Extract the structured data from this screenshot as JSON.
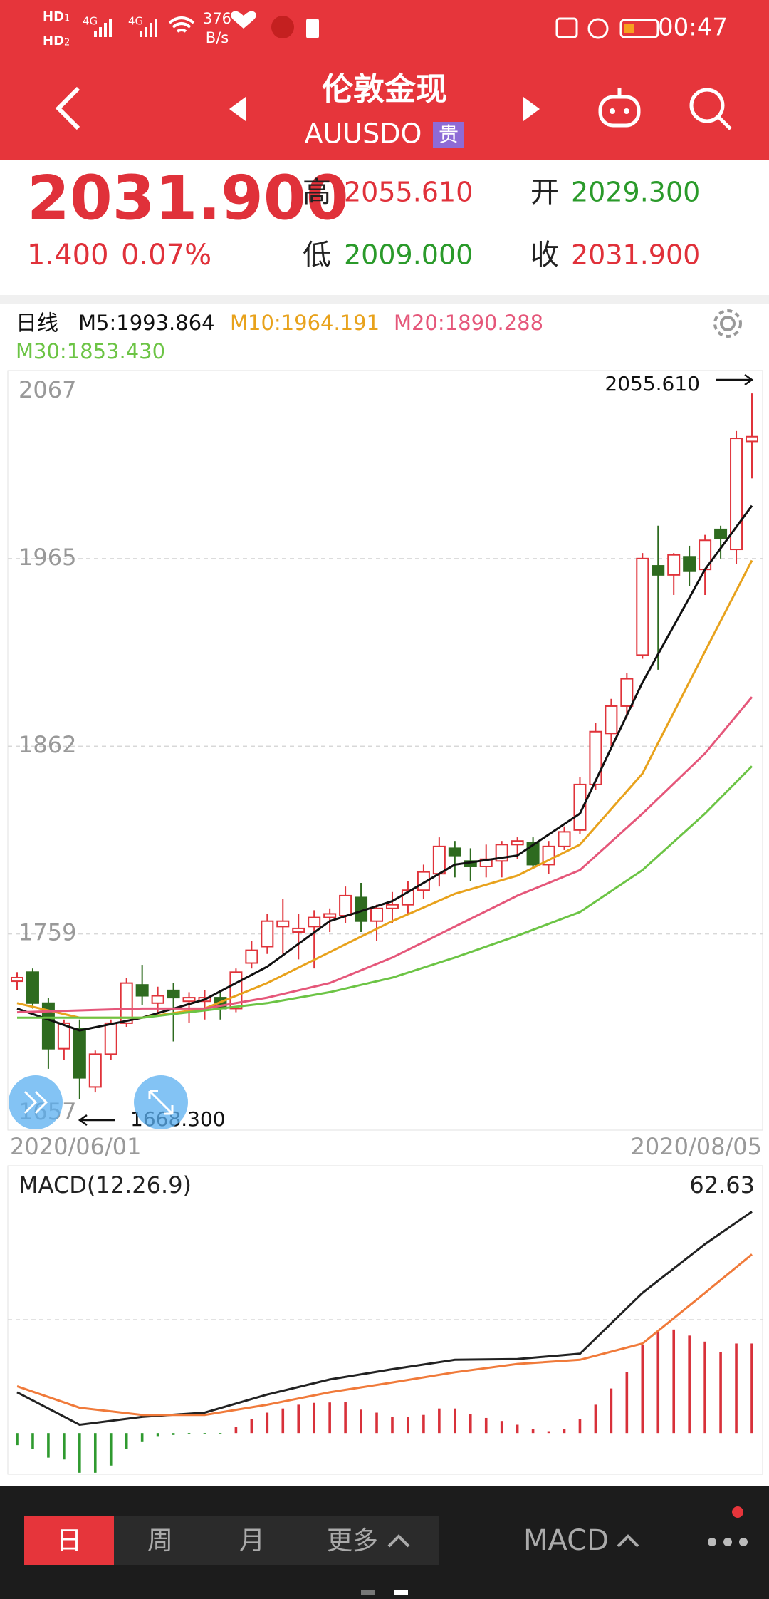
{
  "status_bar": {
    "sim1": "HD",
    "sim1_index": "1",
    "sim2": "HD",
    "sim2_index": "2",
    "network1": "4G",
    "network2": "4G",
    "speed": "376",
    "speed_unit": "B/s",
    "time": "00:47"
  },
  "header": {
    "title": "伦敦金现",
    "code": "AUUSDO",
    "badge": "贵"
  },
  "quote": {
    "price": "2031.900",
    "change": "1.400",
    "change_pct": "0.07%",
    "high_label": "高",
    "high": "2055.610",
    "low_label": "低",
    "low": "2009.000",
    "open_label": "开",
    "open": "2029.300",
    "close_label": "收",
    "close": "2031.900"
  },
  "chart_data": [
    {
      "type": "candlestick",
      "period_label": "日线",
      "categories": [
        "2020/06/01",
        null,
        null,
        null,
        null,
        null,
        null,
        null,
        null,
        null,
        null,
        null,
        null,
        null,
        null,
        null,
        null,
        null,
        null,
        null,
        null,
        null,
        null,
        null,
        null,
        null,
        null,
        null,
        null,
        null,
        null,
        null,
        null,
        null,
        null,
        null,
        null,
        null,
        null,
        null,
        null,
        null,
        null,
        null,
        null,
        null,
        null,
        "2020/08/05"
      ],
      "open": [
        1733,
        1738,
        1721,
        1696,
        1707,
        1675,
        1693,
        1710,
        1731,
        1721,
        1728,
        1722,
        1722,
        1724,
        1718,
        1743,
        1752,
        1763,
        1760,
        1763,
        1768,
        1769,
        1779,
        1766,
        1773,
        1775,
        1783,
        1792,
        1806,
        1799,
        1796,
        1799,
        1808,
        1809,
        1797,
        1807,
        1816,
        1841,
        1869,
        1884,
        1912,
        1961,
        1956,
        1966,
        1959,
        1981,
        1970,
        2029.3
      ],
      "high": [
        1738,
        1740,
        1724,
        1712,
        1712,
        1695,
        1712,
        1735,
        1742,
        1730,
        1732,
        1727,
        1728,
        1728,
        1740,
        1755,
        1770,
        1778,
        1770,
        1772,
        1773,
        1785,
        1787,
        1775,
        1782,
        1788,
        1797,
        1812,
        1810,
        1806,
        1808,
        1810,
        1812,
        1812,
        1810,
        1818,
        1845,
        1875,
        1888,
        1902,
        1968,
        1983,
        1968,
        1972,
        1978,
        1983,
        2035,
        2055.61
      ],
      "low": [
        1728,
        1718,
        1685,
        1690,
        1668.3,
        1672,
        1690,
        1708,
        1720,
        1715,
        1700,
        1710,
        1712,
        1712,
        1716,
        1740,
        1748,
        1748,
        1745,
        1740,
        1760,
        1765,
        1760,
        1755,
        1765,
        1770,
        1778,
        1785,
        1790,
        1788,
        1790,
        1790,
        1800,
        1795,
        1792,
        1805,
        1814,
        1838,
        1862,
        1878,
        1910,
        1904,
        1945,
        1950,
        1945,
        1965,
        1962,
        2009
      ],
      "close": [
        1735,
        1721,
        1696,
        1710,
        1680,
        1693,
        1710,
        1732,
        1725,
        1725,
        1724,
        1724,
        1724,
        1718,
        1738,
        1750,
        1766,
        1766,
        1762,
        1768,
        1770,
        1780,
        1766,
        1773,
        1775,
        1783,
        1793,
        1807,
        1802,
        1796,
        1800,
        1808,
        1810,
        1797,
        1807,
        1815,
        1841,
        1870,
        1884,
        1899,
        1965,
        1956,
        1967,
        1958,
        1975,
        1976,
        2031,
        2031.9
      ],
      "up_color": "#e0333a",
      "down_color": "#2e6b1f",
      "ylim": [
        1651.3,
        2067
      ],
      "yticks": [
        2067,
        1965,
        1862,
        1759,
        1657
      ],
      "grid": true,
      "high_annotation": "2055.610",
      "low_annotation": "1668.300",
      "series": [
        {
          "name": "M5:1993.864",
          "color": "#111111",
          "x": [
            0,
            4,
            8,
            12,
            16,
            20,
            24,
            28,
            32,
            36,
            40,
            44,
            47
          ],
          "values": [
            1718,
            1706,
            1713,
            1723,
            1741,
            1766,
            1777,
            1797,
            1802,
            1825,
            1897,
            1959,
            1994
          ]
        },
        {
          "name": "M10:1964.191",
          "color": "#e8a21c",
          "x": [
            0,
            4,
            8,
            12,
            16,
            20,
            24,
            28,
            32,
            36,
            40,
            44,
            47
          ],
          "values": [
            1721,
            1713,
            1713,
            1718,
            1732,
            1749,
            1766,
            1781,
            1791,
            1808,
            1847,
            1914,
            1964
          ]
        },
        {
          "name": "M20:1890.288",
          "color": "#e5577a",
          "x": [
            0,
            4,
            8,
            12,
            16,
            20,
            24,
            28,
            32,
            36,
            40,
            44,
            47
          ],
          "values": [
            1716,
            1717,
            1718,
            1718,
            1724,
            1732,
            1746,
            1763,
            1780,
            1794,
            1825,
            1858,
            1889
          ]
        },
        {
          "name": "M30:1853.430",
          "color": "#6cc445",
          "x": [
            0,
            4,
            8,
            12,
            16,
            20,
            24,
            28,
            32,
            36,
            40,
            44,
            47
          ],
          "values": [
            1713,
            1713,
            1713,
            1717,
            1721,
            1727,
            1735,
            1746,
            1758,
            1771,
            1794,
            1825,
            1851
          ]
        }
      ]
    },
    {
      "type": "macd",
      "title": "MACD(12.26.9)",
      "ylim": [
        -11,
        62.63
      ],
      "grid_values": [
        30
      ],
      "series": [
        {
          "color": "#222222",
          "x": [
            0,
            4,
            8,
            12,
            16,
            20,
            24,
            28,
            32,
            36,
            40,
            44,
            47
          ],
          "values": [
            10.8,
            2.2,
            4.3,
            5.4,
            10.2,
            14.2,
            16.9,
            19.4,
            19.6,
            21,
            37.1,
            50,
            58.6
          ]
        },
        {
          "color": "#f07a3a",
          "x": [
            0,
            4,
            8,
            12,
            16,
            20,
            24,
            28,
            32,
            36,
            40,
            44,
            47
          ],
          "values": [
            12.4,
            6.7,
            4.8,
            4.8,
            7.5,
            10.8,
            13.4,
            16.1,
            18.3,
            19.4,
            23.7,
            37.1,
            47.3
          ]
        }
      ],
      "histogram": {
        "up_color": "#d8313a",
        "down_color": "#2f9a2f",
        "values": [
          -3.2,
          -4.3,
          -6.5,
          -7,
          -10.5,
          -10.5,
          -8.6,
          -4.3,
          -2.2,
          -0.8,
          -0.5,
          -0.3,
          -0.3,
          -0.3,
          1.6,
          3.8,
          5.4,
          6.5,
          7.5,
          8,
          8.1,
          8.3,
          6.2,
          5.4,
          4.3,
          4.3,
          4.8,
          6.5,
          6.5,
          5,
          4,
          3.2,
          2.2,
          1,
          0.5,
          1,
          3.8,
          7.5,
          11.8,
          16.1,
          23.4,
          26.9,
          27.4,
          25.8,
          24.2,
          21.5,
          23.7,
          23.7
        ]
      }
    }
  ],
  "toolbar": {
    "tabs": [
      "日",
      "周",
      "月",
      "更多"
    ],
    "indicator": "MACD"
  }
}
